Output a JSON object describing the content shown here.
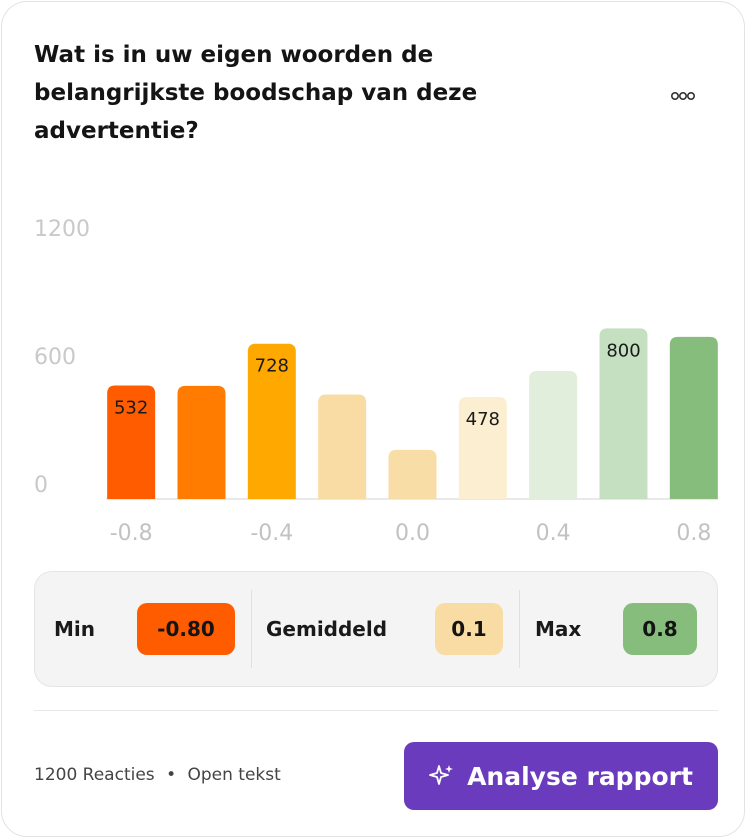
{
  "header": {
    "title": "Wat is in uw eigen woorden de belangrijkste boodschap van deze advertentie?"
  },
  "chart_data": {
    "type": "bar",
    "x": [
      -0.8,
      -0.6,
      -0.4,
      -0.2,
      0,
      0.2,
      0.4,
      0.6,
      0.8
    ],
    "values": [
      532,
      530,
      728,
      490,
      230,
      478,
      600,
      800,
      760
    ],
    "value_labels": [
      "532",
      null,
      "728",
      null,
      null,
      "478",
      null,
      "800",
      null
    ],
    "colors": [
      "#ff5c00",
      "#ff7c00",
      "#ffa800",
      "#f9dca4",
      "#f9dda6",
      "#fcefd1",
      "#e0eedb",
      "#c4e0c0",
      "#86bd7c"
    ],
    "xlim": [
      -0.9,
      0.9
    ],
    "xticks": [
      -0.8,
      -0.4,
      {
        "value": 0,
        "label": "0.0"
      },
      0.4,
      0.8
    ],
    "ylim": [
      0,
      1200
    ],
    "yticks": [
      0,
      600,
      1200
    ],
    "grid": false
  },
  "stats": [
    {
      "label": "Min",
      "value": "-0.80",
      "color": "#ff5c00"
    },
    {
      "label": "Gemiddeld",
      "value": "0.1",
      "color": "#f9dca4"
    },
    {
      "label": "Max",
      "value": "0.8",
      "color": "#86bd7c"
    }
  ],
  "footer": {
    "responses": "1200 Reacties",
    "kind": "Open tekst",
    "button": "Analyse rapport"
  }
}
